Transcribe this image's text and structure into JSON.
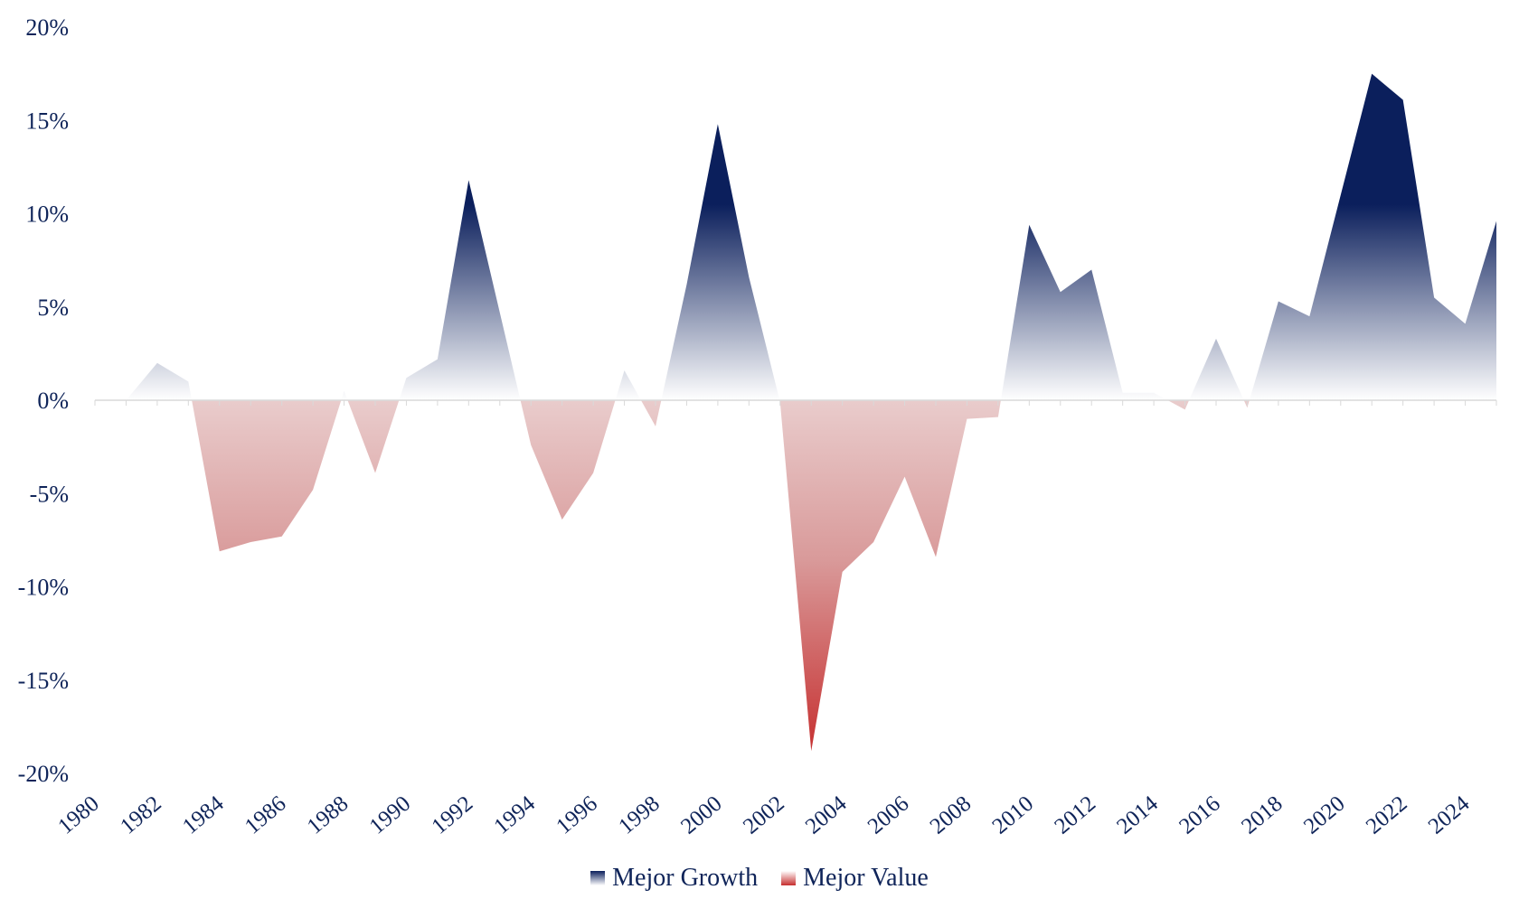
{
  "chart_data": {
    "type": "area",
    "title": "",
    "xlabel": "",
    "ylabel": "",
    "ylim": [
      -20,
      20
    ],
    "ytick_values": [
      -20,
      -15,
      -10,
      -5,
      0,
      5,
      10,
      15,
      20
    ],
    "yticks": [
      "-20%",
      "-15%",
      "-10%",
      "-5%",
      "0%",
      "5%",
      "10%",
      "15%",
      "20%"
    ],
    "xticks": [
      "1980",
      "1982",
      "1984",
      "1986",
      "1988",
      "1990",
      "1992",
      "1994",
      "1996",
      "1998",
      "2000",
      "2002",
      "2004",
      "2006",
      "2008",
      "2010",
      "2012",
      "2014",
      "2016",
      "2018",
      "2020",
      "2022",
      "2024"
    ],
    "x": [
      1980,
      1981,
      1982,
      1983,
      1984,
      1985,
      1986,
      1987,
      1988,
      1989,
      1990,
      1991,
      1992,
      1993,
      1994,
      1995,
      1996,
      1997,
      1998,
      1999,
      2000,
      2001,
      2002,
      2003,
      2004,
      2005,
      2006,
      2007,
      2008,
      2009,
      2010,
      2011,
      2012,
      2013,
      2014,
      2015,
      2016,
      2017,
      2018,
      2019,
      2020,
      2021,
      2022,
      2023,
      2024,
      2025
    ],
    "values": [
      0.0,
      0.0,
      2.0,
      1.0,
      -8.1,
      -7.6,
      -7.3,
      -4.8,
      0.5,
      -3.9,
      1.2,
      2.2,
      11.8,
      4.7,
      -2.4,
      -6.4,
      -3.9,
      1.6,
      -1.4,
      6.2,
      14.8,
      6.6,
      -0.1,
      -18.8,
      -9.2,
      -7.6,
      -4.1,
      -8.4,
      -1.0,
      -0.9,
      9.4,
      5.8,
      7.0,
      0.4,
      0.4,
      -0.5,
      3.3,
      -0.4,
      5.3,
      4.5,
      11.0,
      17.5,
      16.1,
      5.5,
      4.1,
      9.6
    ],
    "series": [
      {
        "name": "Mejor Growth",
        "color": "#0b1f5c",
        "rule": "positive values"
      },
      {
        "name": "Mejor Value",
        "color": "#c62f2f",
        "rule": "negative values"
      }
    ],
    "legend_position": "bottom-center",
    "grid": false
  },
  "legend": {
    "growth_label": "Mejor Growth",
    "value_label": "Mejor Value"
  },
  "colors": {
    "axis_text": "#0f2459",
    "growth_dark": "#0b1f5c",
    "growth_light": "#ffffff",
    "value_dark": "#c62f2f",
    "value_light": "#e9cccc",
    "baseline": "#d9d9d9"
  }
}
